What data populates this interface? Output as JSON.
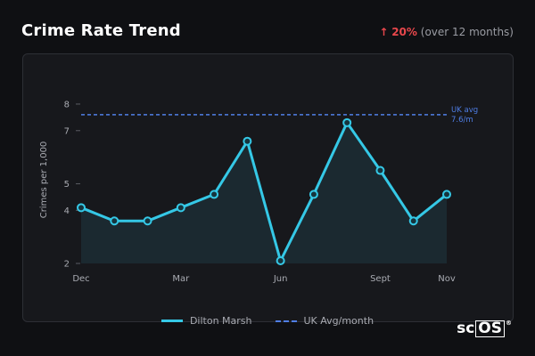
{
  "header": {
    "title": "Crime Rate Trend",
    "change_arrow": "↑",
    "change_value": "20%",
    "change_suffix": "(over 12 months)"
  },
  "colors": {
    "series": "#35c8e6",
    "reference": "#4f7ee6",
    "positive_change": "#e8474c"
  },
  "chart_data": {
    "type": "line",
    "ylabel": "Crimes per 1,000",
    "xlabel": "",
    "ylim": [
      2,
      8.4
    ],
    "yticks": [
      2,
      4,
      5,
      7,
      8
    ],
    "ytick_labels": [
      "2",
      "4",
      "5",
      "7",
      "8"
    ],
    "xticks": [
      {
        "x": 0,
        "label": "Dec"
      },
      {
        "x": 3,
        "label": "Mar"
      },
      {
        "x": 6,
        "label": "Jun"
      },
      {
        "x": 9,
        "label": "Sept"
      },
      {
        "x": 11,
        "label": "Nov"
      }
    ],
    "x": [
      0,
      1,
      2,
      3,
      4,
      5,
      6,
      7,
      8,
      9,
      10,
      11
    ],
    "series": [
      {
        "name": "Dilton Marsh",
        "values": [
          4.1,
          3.6,
          3.6,
          4.1,
          4.6,
          6.6,
          2.1,
          4.6,
          7.3,
          5.5,
          3.6,
          4.6
        ]
      }
    ],
    "reference_line": {
      "name": "UK Avg/month",
      "value": 7.6,
      "label_line1": "UK avg",
      "label_line2": "7.6/m"
    },
    "grid": false,
    "legend": "bottom-center"
  },
  "legend": {
    "series_label": "Dilton Marsh",
    "reference_label": "UK Avg/month"
  },
  "branding": {
    "logo_prefix": "sc",
    "logo_boxed": "OS",
    "logo_mark": "®"
  }
}
